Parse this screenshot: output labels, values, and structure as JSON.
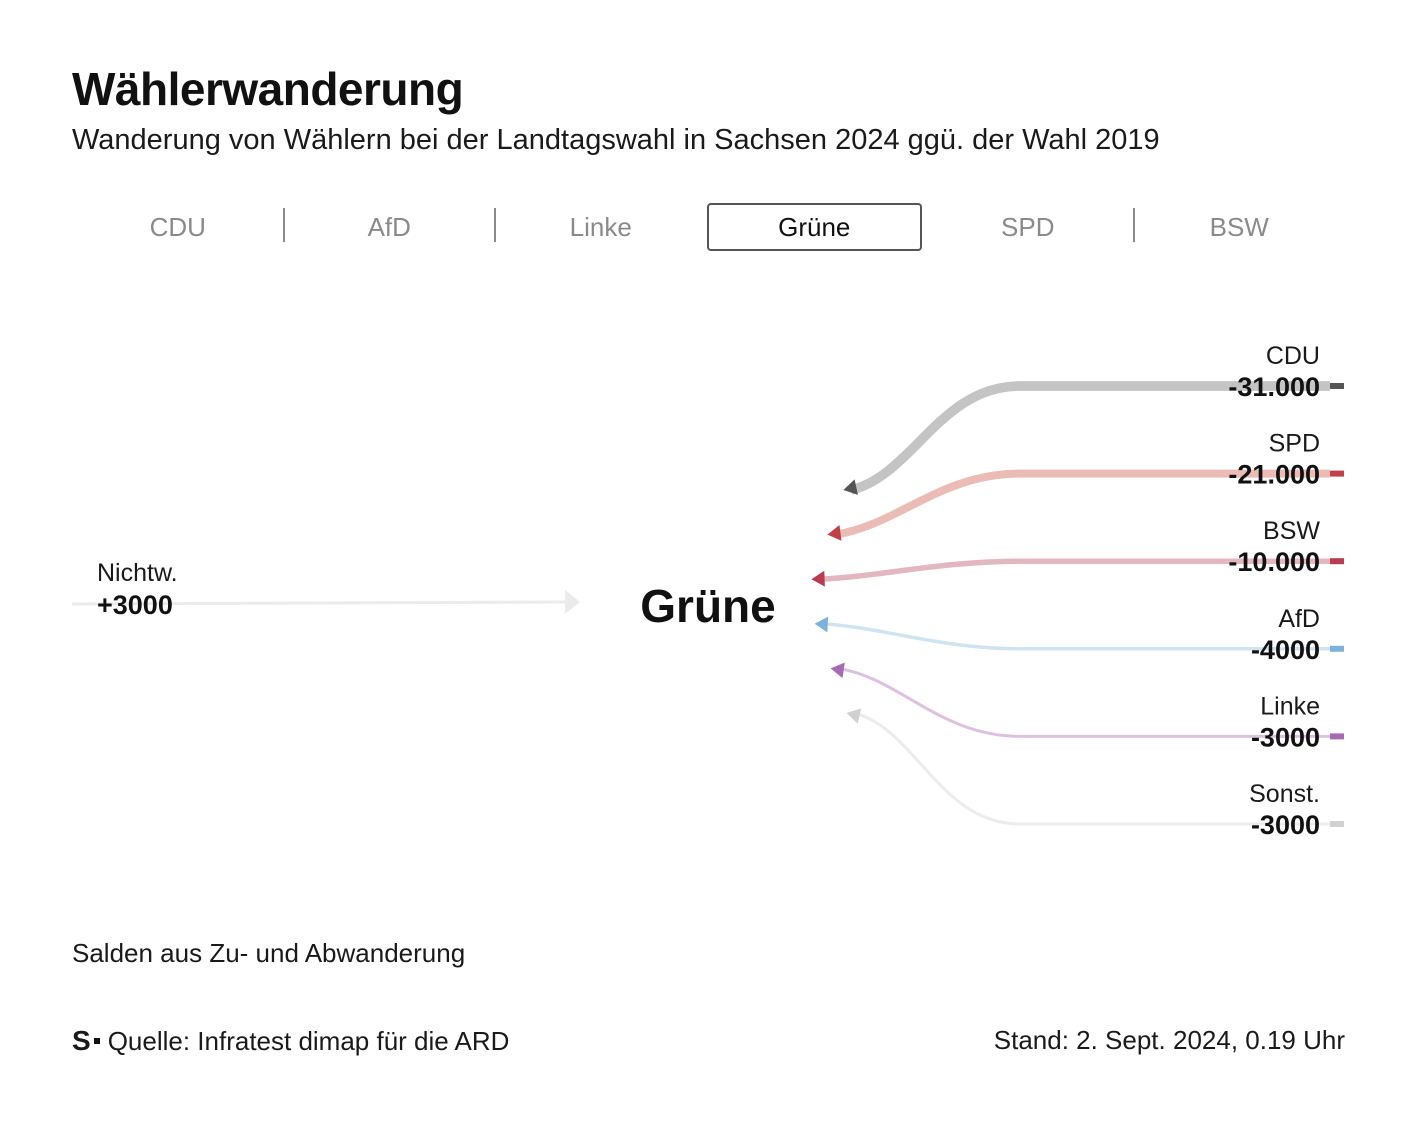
{
  "header": {
    "title": "Wählerwanderung",
    "subtitle": "Wanderung von Wählern bei der Landtagswahl in Sachsen 2024 ggü. der Wahl 2019"
  },
  "tabs": [
    {
      "label": "CDU",
      "active": false
    },
    {
      "label": "AfD",
      "active": false
    },
    {
      "label": "Linke",
      "active": false
    },
    {
      "label": "Grüne",
      "active": true
    },
    {
      "label": "SPD",
      "active": false
    },
    {
      "label": "BSW",
      "active": false
    }
  ],
  "chart_data": {
    "type": "sankey",
    "center": "Grüne",
    "gains": [
      {
        "name": "Nichtw.",
        "label": "+3000",
        "value": 3000,
        "color": "#ebebeb"
      }
    ],
    "losses": [
      {
        "name": "CDU",
        "label": "-31.000",
        "value": -31000,
        "color": "#c4c4c4",
        "marker": "#555555"
      },
      {
        "name": "SPD",
        "label": "-21.000",
        "value": -21000,
        "color": "#ebbcb6",
        "marker": "#c0414a"
      },
      {
        "name": "BSW",
        "label": "-10.000",
        "value": -10000,
        "color": "#e3b7c0",
        "marker": "#b83b52"
      },
      {
        "name": "AfD",
        "label": "-4000",
        "value": -4000,
        "color": "#cfe3f1",
        "marker": "#7db3db"
      },
      {
        "name": "Linke",
        "label": "-3000",
        "value": -3000,
        "color": "#dcc1e0",
        "marker": "#a56bb3"
      },
      {
        "name": "Sonst.",
        "label": "-3000",
        "value": -3000,
        "color": "#ececec",
        "marker": "#d0d0d0"
      }
    ]
  },
  "footnote": "Salden aus Zu- und Abwanderung",
  "footer": {
    "logo": "S",
    "source": "Quelle: Infratest dimap für die ARD",
    "stand": "Stand: 2. Sept. 2024, 0.19 Uhr"
  }
}
